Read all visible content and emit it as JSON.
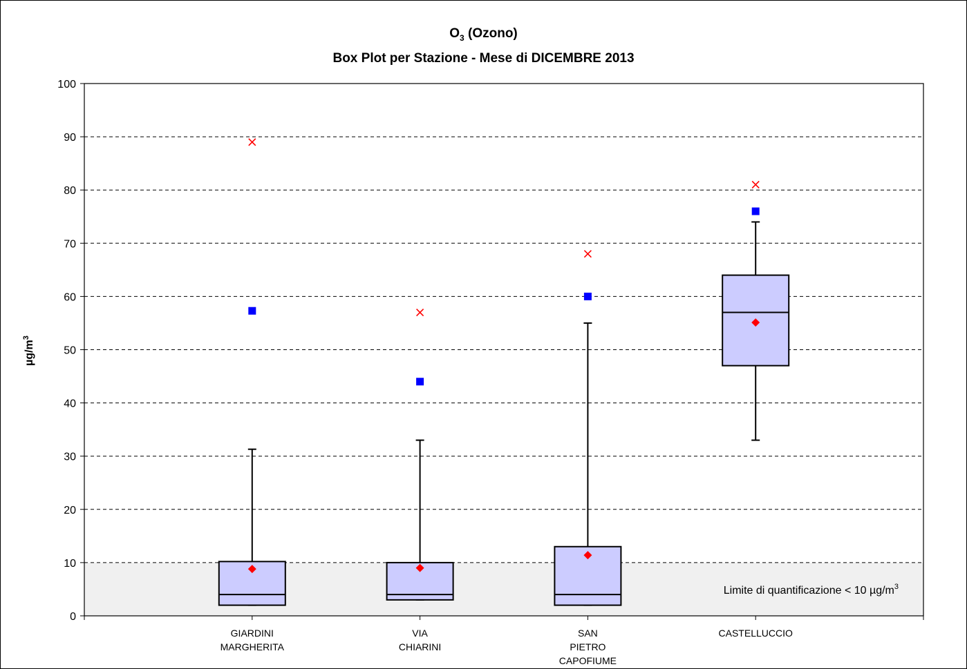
{
  "chart_data": {
    "type": "boxplot",
    "title_main": "O",
    "title_subscript": "3",
    "title_suffix": " (Ozono)",
    "subtitle": "Box Plot per Stazione - Mese di DICEMBRE 2013",
    "ylabel_main": "µg/m",
    "ylabel_sup": "3",
    "ylim": [
      0,
      100
    ],
    "yticks": [
      "0",
      "10",
      "20",
      "30",
      "40",
      "50",
      "60",
      "70",
      "80",
      "90",
      "100"
    ],
    "grid": "dashed horizontal",
    "shaded_band": {
      "from": 0,
      "to": 10,
      "label_main": "Limite di quantificazione < 10 µg/m",
      "label_sup": "3"
    },
    "categories": [
      [
        "GIARDINI",
        "MARGHERITA"
      ],
      [
        "VIA",
        "CHIARINI"
      ],
      [
        "SAN",
        "PIETRO",
        "CAPOFIUME"
      ],
      [
        "CASTELLUCCIO"
      ]
    ],
    "boxes": [
      {
        "whisker_low": 2,
        "q1": 2,
        "median": 4,
        "q3": 10.2,
        "whisker_high": 31.3,
        "mean": 8.8,
        "blue_square": 57.3,
        "red_x": 89
      },
      {
        "whisker_low": 3,
        "q1": 3,
        "median": 4,
        "q3": 10,
        "whisker_high": 33,
        "mean": 9,
        "blue_square": 44,
        "red_x": 57
      },
      {
        "whisker_low": 2,
        "q1": 2,
        "median": 4,
        "q3": 13,
        "whisker_high": 55,
        "mean": 11.4,
        "blue_square": 60,
        "red_x": 68
      },
      {
        "whisker_low": 33,
        "q1": 47,
        "median": 57,
        "q3": 64,
        "whisker_high": 74,
        "mean": 55.1,
        "blue_square": 76,
        "red_x": 81
      }
    ],
    "colors": {
      "box_fill": "#ccccff",
      "mean_marker": "#ff0000",
      "square_marker": "#0000ff",
      "x_marker": "#ff0000",
      "band_fill": "#f0f0f0"
    }
  }
}
